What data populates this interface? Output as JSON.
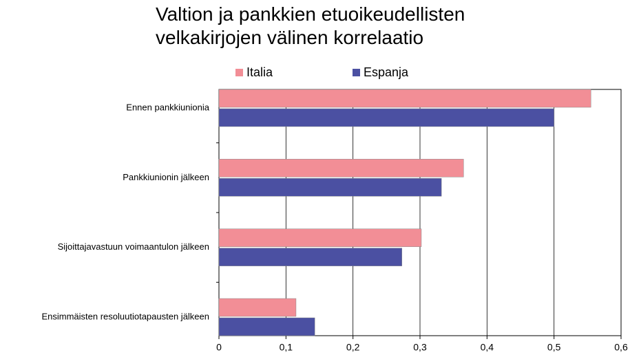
{
  "chart_data": {
    "type": "bar",
    "orientation": "horizontal",
    "title": "Valtion ja pankkien etuoikeudellisten velkakirjojen välinen korrelaatio",
    "categories": [
      "Ennen pankkiunionia",
      "Pankkiunionin jälkeen",
      "Sijoittajavastuun voimaantulon jälkeen",
      "Ensimmäisten resoluutiotapausten jälkeen"
    ],
    "series": [
      {
        "name": "Italia",
        "color": "#f28e96",
        "values": [
          0.555,
          0.365,
          0.302,
          0.115
        ]
      },
      {
        "name": "Espanja",
        "color": "#4b50a2",
        "values": [
          0.5,
          0.332,
          0.273,
          0.143
        ]
      }
    ],
    "xlim": [
      0,
      0.6
    ],
    "xticks": [
      0,
      {
        "value": 0.1,
        "label": "0,1"
      },
      {
        "value": 0.2,
        "label": "0,2"
      },
      {
        "value": 0.3,
        "label": "0,3"
      },
      {
        "value": 0.4,
        "label": "0,4"
      },
      {
        "value": 0.5,
        "label": "0,5"
      },
      {
        "value": 0.6,
        "label": "0,6"
      }
    ],
    "grid": true,
    "legend": "top"
  }
}
